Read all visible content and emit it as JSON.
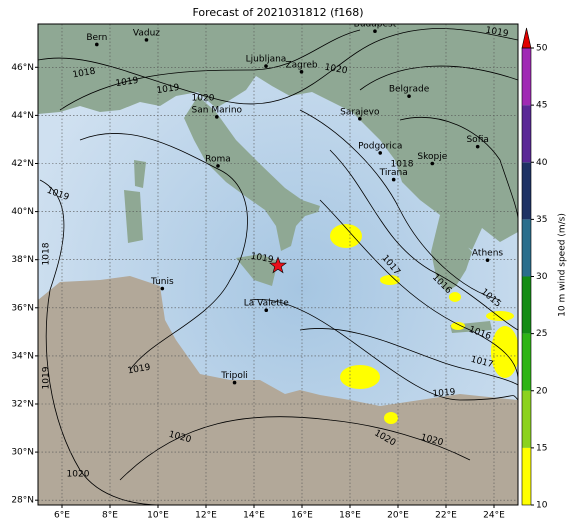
{
  "map": {
    "title": "Forecast of 2021031812 (f168)",
    "lonlim": [
      5,
      25
    ],
    "latlim": [
      27.8,
      47.8
    ],
    "lonticks": [
      {
        "value": 6,
        "label": "6°E"
      },
      {
        "value": 8,
        "label": "8°E"
      },
      {
        "value": 10,
        "label": "10°E"
      },
      {
        "value": 12,
        "label": "12°E"
      },
      {
        "value": 14,
        "label": "14°E"
      },
      {
        "value": 16,
        "label": "16°E"
      },
      {
        "value": 18,
        "label": "18°E"
      },
      {
        "value": 20,
        "label": "20°E"
      },
      {
        "value": 22,
        "label": "22°E"
      },
      {
        "value": 24,
        "label": "24°E"
      }
    ],
    "latticks": [
      {
        "value": 28,
        "label": "28°N"
      },
      {
        "value": 30,
        "label": "30°N"
      },
      {
        "value": 32,
        "label": "32°N"
      },
      {
        "value": 34,
        "label": "34°N"
      },
      {
        "value": 36,
        "label": "36°N"
      },
      {
        "value": 38,
        "label": "38°N"
      },
      {
        "value": 40,
        "label": "40°N"
      },
      {
        "value": 42,
        "label": "42°N"
      },
      {
        "value": 44,
        "label": "44°N"
      },
      {
        "value": 46,
        "label": "46°N"
      }
    ],
    "grid": true,
    "cities": [
      {
        "name": "Bern",
        "lon": 7.45,
        "lat": 46.95
      },
      {
        "name": "Vaduz",
        "lon": 9.52,
        "lat": 47.14
      },
      {
        "name": "Budapest",
        "lon": 19.04,
        "lat": 47.5
      },
      {
        "name": "Ljubljana",
        "lon": 14.5,
        "lat": 46.05
      },
      {
        "name": "Zagreb",
        "lon": 15.98,
        "lat": 45.81
      },
      {
        "name": "Belgrade",
        "lon": 20.46,
        "lat": 44.8
      },
      {
        "name": "San Marino",
        "lon": 12.45,
        "lat": 43.94
      },
      {
        "name": "Sarajevo",
        "lon": 18.41,
        "lat": 43.86
      },
      {
        "name": "Sofia",
        "lon": 23.32,
        "lat": 42.7
      },
      {
        "name": "Podgorica",
        "lon": 19.26,
        "lat": 42.44
      },
      {
        "name": "Skopje",
        "lon": 21.43,
        "lat": 42.0
      },
      {
        "name": "Roma",
        "lon": 12.5,
        "lat": 41.9
      },
      {
        "name": "Tirana",
        "lon": 19.82,
        "lat": 41.33
      },
      {
        "name": "Athens",
        "lon": 23.73,
        "lat": 37.98
      },
      {
        "name": "Tunis",
        "lon": 10.18,
        "lat": 36.8
      },
      {
        "name": "La Valette",
        "lon": 14.51,
        "lat": 35.9
      },
      {
        "name": "Tripoli",
        "lon": 13.19,
        "lat": 32.89
      }
    ],
    "marker": {
      "lon": 15.0,
      "lat": 37.75,
      "color": "#e8101a"
    },
    "isobar_labels": [
      1018,
      1019,
      1019,
      1020,
      1020,
      1019,
      1019,
      1018,
      1019,
      1019,
      1020,
      1020,
      1018,
      1019,
      1017,
      1016,
      1015,
      1016,
      1017,
      1019,
      1020,
      1020
    ],
    "colorbar": {
      "label": "10 m wind speed (m/s)",
      "lim": [
        10,
        50
      ],
      "ticks": [
        10,
        15,
        20,
        25,
        30,
        35,
        40,
        45,
        50
      ],
      "colors": [
        "#ffff00",
        "#8cd21e",
        "#2eb414",
        "#148c14",
        "#2a6e8c",
        "#1e3264",
        "#5a2896",
        "#a02ab4"
      ],
      "extend_color": "#e00000"
    }
  }
}
